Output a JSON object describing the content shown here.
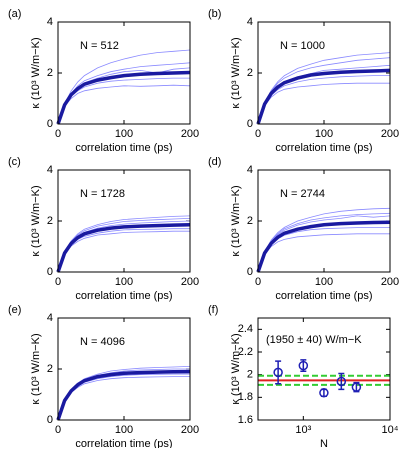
{
  "chart_data": [
    {
      "type": "line",
      "panel_label": "(a)",
      "annotation": "N = 512",
      "xlabel": "correlation time (ps)",
      "ylabel": "κ (10³ W/m−K)",
      "x": [
        0,
        10,
        20,
        30,
        40,
        60,
        80,
        100,
        125,
        150,
        175,
        200
      ],
      "xlim": [
        0,
        200
      ],
      "xticks": [
        0,
        100,
        200
      ],
      "ylim": [
        0,
        4
      ],
      "yticks": [
        0,
        2,
        4
      ],
      "series": [
        {
          "color": "#8a8aff",
          "values": [
            0,
            0.8,
            1.3,
            1.65,
            1.9,
            2.2,
            2.4,
            2.55,
            2.7,
            2.8,
            2.85,
            2.9
          ]
        },
        {
          "color": "#8a8aff",
          "values": [
            0,
            0.7,
            1.0,
            1.2,
            1.3,
            1.4,
            1.45,
            1.5,
            1.48,
            1.5,
            1.52,
            1.5
          ]
        },
        {
          "color": "#8a8aff",
          "values": [
            0,
            0.78,
            1.2,
            1.5,
            1.7,
            1.9,
            2.05,
            2.15,
            2.25,
            2.3,
            2.35,
            2.4
          ]
        },
        {
          "color": "#8a8aff",
          "values": [
            0,
            0.72,
            1.1,
            1.3,
            1.45,
            1.6,
            1.68,
            1.72,
            1.75,
            1.78,
            1.8,
            1.8
          ]
        },
        {
          "color": "#8a8aff",
          "values": [
            0,
            0.76,
            1.18,
            1.45,
            1.62,
            1.8,
            1.95,
            2.05,
            2.1,
            2.0,
            2.15,
            2.2
          ]
        },
        {
          "color": "#1a1aa0",
          "values": [
            0,
            0.75,
            1.15,
            1.39,
            1.56,
            1.72,
            1.82,
            1.9,
            1.95,
            1.98,
            2.0,
            2.02
          ]
        }
      ]
    },
    {
      "type": "line",
      "panel_label": "(b)",
      "annotation": "N = 1000",
      "xlabel": "correlation time (ps)",
      "ylabel": "κ (10³ W/m−K)",
      "x": [
        0,
        10,
        20,
        30,
        40,
        60,
        80,
        100,
        125,
        150,
        175,
        200
      ],
      "xlim": [
        0,
        200
      ],
      "xticks": [
        0,
        100,
        200
      ],
      "ylim": [
        0,
        4
      ],
      "yticks": [
        0,
        2,
        4
      ],
      "series": [
        {
          "color": "#8a8aff",
          "values": [
            0,
            0.8,
            1.28,
            1.6,
            1.8,
            2.05,
            2.2,
            2.3,
            2.4,
            2.5,
            2.55,
            2.6
          ]
        },
        {
          "color": "#8a8aff",
          "values": [
            0,
            0.72,
            1.05,
            1.25,
            1.36,
            1.45,
            1.5,
            1.55,
            1.58,
            1.6,
            1.6,
            1.6
          ]
        },
        {
          "color": "#8a8aff",
          "values": [
            0,
            0.78,
            1.2,
            1.48,
            1.66,
            1.85,
            1.98,
            2.1,
            2.15,
            2.2,
            2.25,
            2.3
          ]
        },
        {
          "color": "#8a8aff",
          "values": [
            0,
            0.74,
            1.12,
            1.35,
            1.5,
            1.65,
            1.75,
            1.8,
            1.85,
            1.88,
            1.9,
            1.9
          ]
        },
        {
          "color": "#8a8aff",
          "values": [
            0,
            0.82,
            1.32,
            1.66,
            1.9,
            2.18,
            2.35,
            2.5,
            2.6,
            2.7,
            2.75,
            2.8
          ]
        },
        {
          "color": "#1a1aa0",
          "values": [
            0,
            0.78,
            1.2,
            1.45,
            1.62,
            1.8,
            1.92,
            1.98,
            2.03,
            2.06,
            2.08,
            2.1
          ]
        }
      ]
    },
    {
      "type": "line",
      "panel_label": "(c)",
      "annotation": "N = 1728",
      "xlabel": "correlation time (ps)",
      "ylabel": "κ (10³ W/m−K)",
      "x": [
        0,
        10,
        20,
        30,
        40,
        60,
        80,
        100,
        125,
        150,
        175,
        200
      ],
      "xlim": [
        0,
        200
      ],
      "xticks": [
        0,
        100,
        200
      ],
      "ylim": [
        0,
        4
      ],
      "yticks": [
        0,
        2,
        4
      ],
      "series": [
        {
          "color": "#8a8aff",
          "values": [
            0,
            0.78,
            1.2,
            1.45,
            1.62,
            1.8,
            1.9,
            1.98,
            2.02,
            2.05,
            2.08,
            2.1
          ]
        },
        {
          "color": "#8a8aff",
          "values": [
            0,
            0.7,
            1.02,
            1.2,
            1.32,
            1.45,
            1.5,
            1.55,
            1.57,
            1.58,
            1.6,
            1.6
          ]
        },
        {
          "color": "#8a8aff",
          "values": [
            0,
            0.76,
            1.16,
            1.4,
            1.56,
            1.72,
            1.82,
            1.88,
            1.92,
            1.95,
            1.98,
            2.0
          ]
        },
        {
          "color": "#8a8aff",
          "values": [
            0,
            0.72,
            1.08,
            1.28,
            1.4,
            1.52,
            1.6,
            1.65,
            1.67,
            1.68,
            1.7,
            1.7
          ]
        },
        {
          "color": "#8a8aff",
          "values": [
            0,
            0.8,
            1.22,
            1.5,
            1.68,
            1.86,
            1.98,
            2.06,
            2.1,
            2.14,
            2.18,
            2.2
          ]
        },
        {
          "color": "#1a1aa0",
          "values": [
            0,
            0.74,
            1.12,
            1.35,
            1.5,
            1.64,
            1.72,
            1.77,
            1.8,
            1.82,
            1.84,
            1.85
          ]
        }
      ]
    },
    {
      "type": "line",
      "panel_label": "(d)",
      "annotation": "N = 2744",
      "xlabel": "correlation time (ps)",
      "ylabel": "κ (10³ W/m−K)",
      "x": [
        0,
        10,
        20,
        30,
        40,
        60,
        80,
        100,
        125,
        150,
        175,
        200
      ],
      "xlim": [
        0,
        200
      ],
      "xticks": [
        0,
        100,
        200
      ],
      "ylim": [
        0,
        4
      ],
      "yticks": [
        0,
        2,
        4
      ],
      "series": [
        {
          "color": "#8a8aff",
          "values": [
            0,
            0.8,
            1.25,
            1.55,
            1.75,
            2.0,
            2.15,
            2.28,
            2.38,
            2.44,
            2.48,
            2.5
          ]
        },
        {
          "color": "#8a8aff",
          "values": [
            0,
            0.68,
            1.0,
            1.18,
            1.28,
            1.38,
            1.42,
            1.46,
            1.48,
            1.5,
            1.5,
            1.5
          ]
        },
        {
          "color": "#8a8aff",
          "values": [
            0,
            0.78,
            1.2,
            1.46,
            1.64,
            1.84,
            1.96,
            2.04,
            2.1,
            2.2,
            2.15,
            2.2
          ]
        },
        {
          "color": "#8a8aff",
          "values": [
            0,
            0.72,
            1.08,
            1.3,
            1.44,
            1.58,
            1.66,
            1.7,
            1.72,
            1.74,
            1.75,
            1.75
          ]
        },
        {
          "color": "#8a8aff",
          "values": [
            0,
            0.78,
            1.22,
            1.5,
            1.7,
            1.9,
            2.04,
            2.12,
            2.2,
            2.25,
            2.28,
            2.3
          ]
        },
        {
          "color": "#1a1aa0",
          "values": [
            0,
            0.74,
            1.12,
            1.36,
            1.52,
            1.68,
            1.78,
            1.85,
            1.9,
            1.92,
            1.94,
            1.95
          ]
        }
      ]
    },
    {
      "type": "line",
      "panel_label": "(e)",
      "annotation": "N = 4096",
      "xlabel": "correlation time (ps)",
      "ylabel": "κ (10³ W/m−K)",
      "x": [
        0,
        10,
        20,
        30,
        40,
        60,
        80,
        100,
        125,
        150,
        175,
        200
      ],
      "xlim": [
        0,
        200
      ],
      "xticks": [
        0,
        100,
        200
      ],
      "ylim": [
        0,
        4
      ],
      "yticks": [
        0,
        2,
        4
      ],
      "series": [
        {
          "color": "#8a8aff",
          "values": [
            0,
            0.78,
            1.2,
            1.45,
            1.62,
            1.8,
            1.92,
            1.98,
            2.03,
            2.06,
            2.08,
            2.1
          ]
        },
        {
          "color": "#8a8aff",
          "values": [
            0,
            0.72,
            1.08,
            1.28,
            1.42,
            1.55,
            1.62,
            1.66,
            1.68,
            1.69,
            1.7,
            1.7
          ]
        },
        {
          "color": "#8a8aff",
          "values": [
            0,
            0.77,
            1.17,
            1.42,
            1.58,
            1.75,
            1.85,
            1.92,
            1.96,
            1.98,
            2.0,
            2.0
          ]
        },
        {
          "color": "#8a8aff",
          "values": [
            0,
            0.74,
            1.1,
            1.32,
            1.48,
            1.62,
            1.7,
            1.75,
            1.78,
            1.79,
            1.8,
            1.8
          ]
        },
        {
          "color": "#1a1aa0",
          "values": [
            0,
            0.76,
            1.14,
            1.38,
            1.54,
            1.7,
            1.78,
            1.83,
            1.86,
            1.88,
            1.89,
            1.9
          ]
        }
      ]
    },
    {
      "type": "scatter",
      "panel_label": "(f)",
      "annotation": "(1950 ± 40) W/m−K",
      "xlabel": "N",
      "ylabel": "κ (10³ W/m−K)",
      "xscale": "log",
      "xlim": [
        300,
        10000
      ],
      "xticks": [
        {
          "value": 1000,
          "label": "10³"
        },
        {
          "value": 10000,
          "label": "10⁴"
        }
      ],
      "ylim": [
        1.6,
        2.5
      ],
      "yticks": [
        {
          "value": 1.6,
          "label": "1.6"
        },
        {
          "value": 1.8,
          "label": "1.8"
        },
        2,
        {
          "value": 2.2,
          "label": "2.2"
        },
        {
          "value": 2.4,
          "label": "2.4"
        }
      ],
      "x": [
        512,
        1000,
        1728,
        2744,
        4096
      ],
      "values": [
        2.02,
        2.08,
        1.84,
        1.94,
        1.89
      ],
      "errors": [
        0.1,
        0.05,
        0.03,
        0.07,
        0.04
      ],
      "color": "#1f1fb4",
      "reference": {
        "value": 1.95,
        "color": "#e02020"
      },
      "band": {
        "values": [
          1.91,
          1.99
        ],
        "color": "#33cc33"
      }
    }
  ]
}
